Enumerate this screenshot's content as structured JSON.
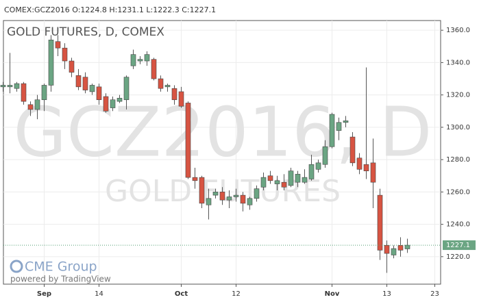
{
  "chart_data": {
    "type": "candlestick",
    "header": "COMEX:GCZ2016 O:1224.8 H:1231.1 L:1222.3 C:1227.1",
    "title": "GOLD FUTURES, D, COMEX",
    "watermark": "GCZ2016, D",
    "watermark_subtitle": "GOLD FUTURES",
    "logo": "CME Group",
    "credit": "powered by TradingView",
    "categories": [
      null,
      null,
      null,
      null,
      null,
      null,
      "Sep",
      null,
      null,
      null,
      null,
      null,
      null,
      null,
      "14",
      null,
      null,
      null,
      null,
      null,
      null,
      null,
      null,
      null,
      null,
      null,
      "Oct",
      null,
      null,
      null,
      null,
      null,
      null,
      null,
      "12",
      null,
      null,
      null,
      null,
      null,
      null,
      null,
      null,
      null,
      null,
      null,
      null,
      null,
      "Nov",
      null,
      null,
      null,
      null,
      null,
      null,
      null,
      "13",
      null,
      null,
      null,
      null,
      null,
      null,
      "23"
    ],
    "series": [
      {
        "up_color": "#6ba583",
        "down_color": "#d75442",
        "open": [
          1325,
          1325,
          1324,
          1327,
          1314,
          1311,
          1317,
          1326,
          1353,
          1349,
          1341,
          1332,
          1331,
          1322,
          1325,
          1319,
          1312,
          1316,
          1317,
          1338,
          1341,
          1341,
          1342,
          1330,
          1325,
          1324,
          1322,
          1315,
          1269,
          1269,
          1252,
          1258,
          1260,
          1255,
          1257,
          1258,
          1252,
          1256,
          1263,
          1270,
          1265,
          1266,
          1264,
          1266,
          1266,
          1268,
          1274,
          1277,
          1288,
          1298,
          1303,
          1294,
          1281,
          1277,
          1278,
          1258,
          1227,
          1221,
          1227,
          1224.8,
          null,
          null,
          null,
          null
        ],
        "high": [
          1328,
          1346,
          1328,
          1328,
          1316,
          1320,
          1327,
          1357,
          1357,
          1352,
          1343,
          1336,
          1334,
          1327,
          1327,
          1321,
          1319,
          1320,
          1332,
          1348,
          1344,
          1347,
          1343,
          1332,
          1327,
          1326,
          1325,
          1316,
          1275,
          1270,
          1262,
          1262,
          1263,
          1261,
          1262,
          1260,
          1257,
          1264,
          1272,
          1273,
          1270,
          1271,
          1275,
          1273,
          1274,
          1283,
          1280,
          1292,
          1309,
          1306,
          1307,
          1297,
          1284,
          1337,
          1293,
          1262,
          1230,
          1227,
          1232,
          1231.1,
          null,
          null,
          null,
          null
        ],
        "low": [
          1322,
          1321,
          1322,
          1314,
          1307,
          1305,
          1310,
          1322,
          1344,
          1336,
          1331,
          1323,
          1321,
          1320,
          1314,
          1309,
          1310,
          1315,
          1311,
          1336,
          1339,
          1338,
          1329,
          1322,
          1322,
          1314,
          1312,
          1268,
          1262,
          1250,
          1243,
          1256,
          1252,
          1250,
          1254,
          1248,
          1249,
          1254,
          1261,
          1265,
          1261,
          1261,
          1263,
          1263,
          1265,
          1267,
          1272,
          1275,
          1287,
          1292,
          1300,
          1276,
          1271,
          1268,
          1250,
          1218,
          1210,
          1219,
          1220,
          1222.3,
          null,
          null,
          null,
          null
        ],
        "close": [
          1326,
          1326,
          1327,
          1316,
          1311,
          1317,
          1326,
          1354,
          1349,
          1341,
          1334,
          1325,
          1323,
          1326,
          1317,
          1310,
          1317,
          1318,
          1331,
          1345,
          1342,
          1345,
          1330,
          1324,
          1326,
          1317,
          1313,
          1269,
          1267,
          1253,
          1256,
          1260,
          1255,
          1257,
          1258,
          1253,
          1256,
          1262,
          1269,
          1267,
          1267,
          1263,
          1273,
          1271,
          1269,
          1277,
          1278,
          1288,
          1308,
          1303,
          1304,
          1278,
          1274,
          1273,
          1266,
          1224,
          1222,
          1225,
          1224,
          1227.1,
          null,
          null,
          null,
          null
        ]
      }
    ],
    "last_price": 1227.1,
    "ylim": [
      1203,
      1366
    ],
    "yticks": [
      {
        "value": 1220,
        "label": "1220.0"
      },
      {
        "value": 1240,
        "label": "1240.0"
      },
      {
        "value": 1260,
        "label": "1260.0"
      },
      {
        "value": 1280,
        "label": "1280.0"
      },
      {
        "value": 1300,
        "label": "1300.0"
      },
      {
        "value": 1320,
        "label": "1320.0"
      },
      {
        "value": 1340,
        "label": "1340.0"
      },
      {
        "value": 1360,
        "label": "1360.0"
      }
    ],
    "grid": true
  }
}
